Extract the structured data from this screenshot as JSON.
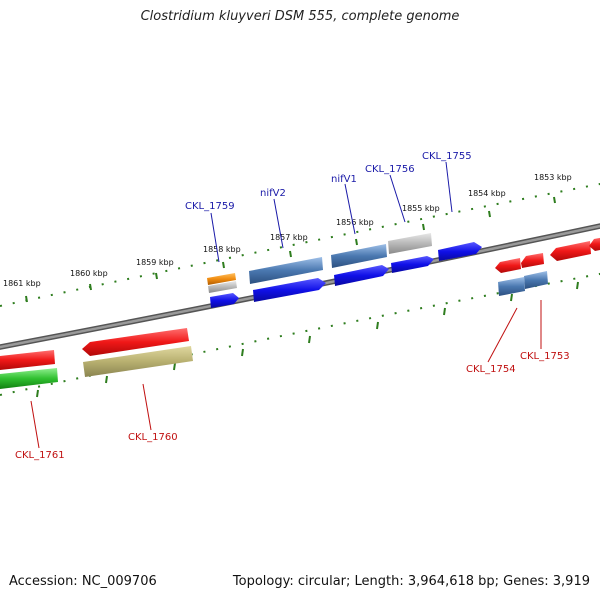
{
  "title": "Clostridium kluyveri DSM 555, complete genome",
  "footer": {
    "accession": "Accession: NC_009706",
    "topology": "Topology: circular; Length: 3,964,618 bp; Genes: 3,919"
  },
  "ruler": {
    "outer_ticks": [
      "1861 kbp",
      "1860 kbp",
      "1859 kbp",
      "1858 kbp",
      "1857 kbp",
      "1856 kbp",
      "1855 kbp",
      "1854 kbp",
      "1853 kbp"
    ]
  },
  "gene_labels": {
    "forward": [
      "CKL_1759",
      "nifV2",
      "nifV1",
      "CKL_1756",
      "CKL_1755"
    ],
    "reverse": [
      "CKL_1761",
      "CKL_1760",
      "CKL_1754",
      "CKL_1753"
    ]
  },
  "colors": {
    "backbone": "#7a7a7a",
    "ruler": "#2e7d1e",
    "cds_forward": "#1010e0",
    "cds_reverse": "#e01010",
    "feature_steelblue": "#4a78b0",
    "feature_orange": "#f08c10",
    "feature_grey": "#b8b8b8",
    "feature_olive": "#b8b070",
    "feature_green": "#30c030",
    "label_forward": "#1a1aa8",
    "label_reverse": "#c01010"
  }
}
